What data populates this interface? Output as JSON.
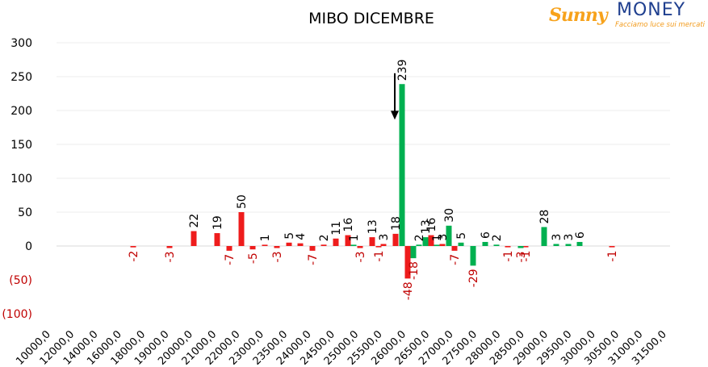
{
  "logo": {
    "word1": "Sunny",
    "word2": "MONEY",
    "tagline": "Facciamo luce sui mercati"
  },
  "chart_data": {
    "type": "bar",
    "title": "MIBO DICEMBRE",
    "xlabel": "",
    "ylabel": "",
    "ylim": [
      -100,
      300
    ],
    "yticks": [
      {
        "value": 300,
        "label": "300"
      },
      {
        "value": 250,
        "label": "250"
      },
      {
        "value": 200,
        "label": "200"
      },
      {
        "value": 150,
        "label": "150"
      },
      {
        "value": 100,
        "label": "100"
      },
      {
        "value": 50,
        "label": "50"
      },
      {
        "value": 0,
        "label": "0"
      },
      {
        "value": -50,
        "label": "(50)"
      },
      {
        "value": -100,
        "label": "(100)"
      }
    ],
    "grid": true,
    "legend": "none",
    "colors": {
      "put": "#ee1c1c",
      "call": "#00b050",
      "negative_tick": "#c00000",
      "label": "#000000",
      "negative_label": "#c00000"
    },
    "categories": [
      "10000,0",
      "12000,0",
      "14000,0",
      "16000,0",
      "18000,0",
      "19000,0",
      "20000,0",
      "21000,0",
      "22000,0",
      "23000,0",
      "23500,0",
      "24000,0",
      "24500,0",
      "25000,0",
      "25500,0",
      "26000,0",
      "26500,0",
      "27000,0",
      "27500,0",
      "28000,0",
      "28500,0",
      "29000,0",
      "29500,0",
      "30000,0",
      "30500,0",
      "31000,0",
      "31500,0"
    ],
    "series": [
      {
        "color": "red",
        "points": [
          {
            "x": 165,
            "value": -2
          },
          {
            "x": 210,
            "value": -3
          },
          {
            "x": 240,
            "value": 22
          },
          {
            "x": 269,
            "value": 19
          },
          {
            "x": 284,
            "value": -7
          },
          {
            "x": 299,
            "value": 50
          },
          {
            "x": 313,
            "value": -5
          },
          {
            "x": 328,
            "value": 1
          },
          {
            "x": 343,
            "value": -3
          },
          {
            "x": 358,
            "value": 5
          },
          {
            "x": 372,
            "value": 4
          },
          {
            "x": 387,
            "value": -7
          },
          {
            "x": 401,
            "value": 2
          },
          {
            "x": 416,
            "value": 11
          },
          {
            "x": 431,
            "value": 16
          },
          {
            "x": 446,
            "value": -3
          },
          {
            "x": 461,
            "value": 13
          },
          {
            "x": 475,
            "value": 3
          },
          {
            "x": 469,
            "value": -1
          },
          {
            "x": 490,
            "value": 18
          },
          {
            "x": 505,
            "value": -48
          },
          {
            "x": 534,
            "value": 16
          },
          {
            "x": 548,
            "value": 3
          },
          {
            "x": 563,
            "value": -7
          },
          {
            "x": 629,
            "value": -1
          },
          {
            "x": 651,
            "value": -1
          },
          {
            "x": 758,
            "value": -1
          }
        ]
      },
      {
        "color": "green",
        "points": [
          {
            "x": 438,
            "value": 1
          },
          {
            "x": 498,
            "value": 239
          },
          {
            "x": 512,
            "value": -18
          },
          {
            "x": 519,
            "value": 2
          },
          {
            "x": 527,
            "value": 13
          },
          {
            "x": 541,
            "value": 1
          },
          {
            "x": 556,
            "value": 30
          },
          {
            "x": 571,
            "value": 5
          },
          {
            "x": 586,
            "value": -29
          },
          {
            "x": 601,
            "value": 6
          },
          {
            "x": 615,
            "value": 2
          },
          {
            "x": 645,
            "value": -3
          },
          {
            "x": 674,
            "value": 28
          },
          {
            "x": 689,
            "value": 3
          },
          {
            "x": 704,
            "value": 3
          },
          {
            "x": 718,
            "value": 6
          }
        ]
      }
    ],
    "annotations": [
      {
        "type": "arrow",
        "target_value": 239,
        "direction": "down"
      }
    ]
  }
}
